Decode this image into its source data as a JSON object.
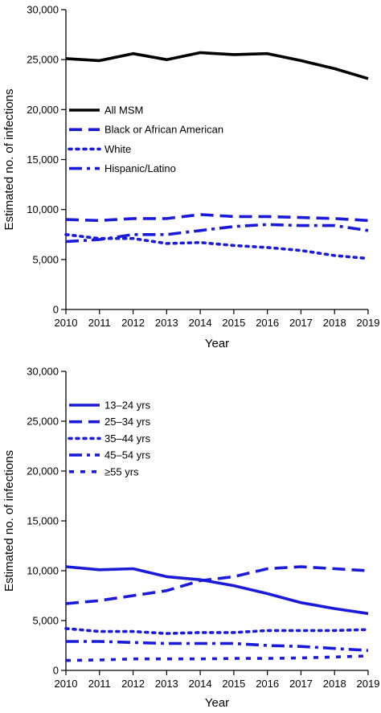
{
  "chart_data": [
    {
      "type": "line",
      "title": "",
      "xlabel": "Year",
      "ylabel": "Estimated no. of infections",
      "x": [
        2010,
        2011,
        2012,
        2013,
        2014,
        2015,
        2016,
        2017,
        2018,
        2019
      ],
      "ylim": [
        0,
        30000
      ],
      "yticks": [
        "0",
        "5,000",
        "10,000",
        "15,000",
        "20,000",
        "25,000",
        "30,000"
      ],
      "legend_position": "left-middle",
      "grid": false,
      "series": [
        {
          "name": "All MSM",
          "style": "solid",
          "color": "#000000",
          "values": [
            25100,
            24900,
            25600,
            25000,
            25700,
            25500,
            25600,
            24900,
            24100,
            23100
          ]
        },
        {
          "name": "Black or African American",
          "style": "dashed",
          "color": "#1a1adb",
          "values": [
            9000,
            8900,
            9100,
            9100,
            9500,
            9300,
            9300,
            9200,
            9100,
            8900
          ]
        },
        {
          "name": "White",
          "style": "dotted",
          "color": "#1a1adb",
          "values": [
            7500,
            7100,
            7100,
            6600,
            6700,
            6400,
            6200,
            5900,
            5400,
            5100
          ]
        },
        {
          "name": "Hispanic/Latino",
          "style": "dashdot",
          "color": "#1a1adb",
          "values": [
            6800,
            7000,
            7500,
            7500,
            7900,
            8300,
            8500,
            8400,
            8400,
            7900
          ]
        }
      ]
    },
    {
      "type": "line",
      "title": "",
      "xlabel": "Year",
      "ylabel": "Estimated no. of infections",
      "x": [
        2010,
        2011,
        2012,
        2013,
        2014,
        2015,
        2016,
        2017,
        2018,
        2019
      ],
      "ylim": [
        0,
        30000
      ],
      "yticks": [
        "0",
        "5,000",
        "10,000",
        "15,000",
        "20,000",
        "25,000",
        "30,000"
      ],
      "legend_position": "top-left",
      "grid": false,
      "series": [
        {
          "name": "13–24 yrs",
          "style": "solid",
          "color": "#1a1adb",
          "values": [
            10400,
            10100,
            10200,
            9400,
            9100,
            8500,
            7700,
            6800,
            6200,
            5700
          ]
        },
        {
          "name": "25–34 yrs",
          "style": "dashed",
          "color": "#1a1adb",
          "values": [
            6700,
            7000,
            7500,
            8000,
            9000,
            9400,
            10200,
            10400,
            10200,
            10000
          ]
        },
        {
          "name": "35–44 yrs",
          "style": "dotted",
          "color": "#1a1adb",
          "values": [
            4200,
            3900,
            3900,
            3700,
            3800,
            3800,
            4000,
            4000,
            4000,
            4100
          ]
        },
        {
          "name": "45–54 yrs",
          "style": "dashdot",
          "color": "#1a1adb",
          "values": [
            2900,
            2900,
            2800,
            2700,
            2700,
            2700,
            2500,
            2400,
            2200,
            2000
          ]
        },
        {
          "name": "≥55 yrs",
          "style": "shortdash",
          "color": "#1a1adb",
          "values": [
            1000,
            1050,
            1150,
            1150,
            1150,
            1200,
            1200,
            1250,
            1350,
            1450
          ]
        }
      ]
    }
  ]
}
